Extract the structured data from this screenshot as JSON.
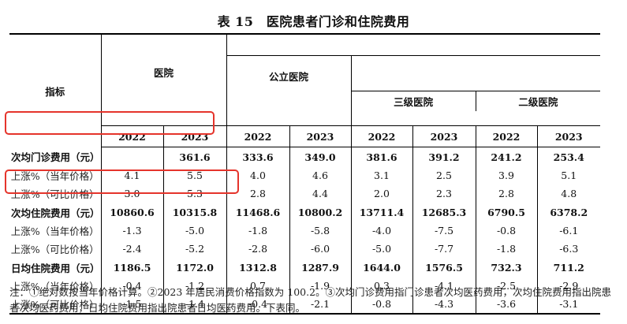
{
  "title": "表 15　医院患者门诊和住院费用",
  "header": {
    "indicator": "指标",
    "hospital": "医院",
    "public_hospital": "公立医院",
    "tier3": "三级医院",
    "tier2": "二级医院",
    "years": [
      "2022",
      "2023",
      "2022",
      "2023",
      "2022",
      "2023",
      "2022",
      "2023"
    ]
  },
  "rows": [
    {
      "label": "次均门诊费用（元）",
      "type": "main",
      "values": [
        "",
        "361.6",
        "333.6",
        "349.0",
        "381.6",
        "391.2",
        "241.2",
        "253.4"
      ]
    },
    {
      "label": "上涨%（当年价格）",
      "type": "sub",
      "values": [
        "4.1",
        "5.5",
        "4.0",
        "4.6",
        "3.1",
        "2.5",
        "3.9",
        "5.1"
      ]
    },
    {
      "label": "上涨%（可比价格）",
      "type": "sub",
      "values": [
        "3.0",
        "5.3",
        "2.8",
        "4.4",
        "2.0",
        "2.3",
        "2.8",
        "4.8"
      ]
    },
    {
      "label": "次均住院费用（元）",
      "type": "main",
      "values": [
        "10860.6",
        "10315.8",
        "11468.6",
        "10800.2",
        "13711.4",
        "12685.3",
        "6790.5",
        "6378.2"
      ]
    },
    {
      "label": "上涨%（当年价格）",
      "type": "sub",
      "values": [
        "-1.3",
        "-5.0",
        "-1.8",
        "-5.8",
        "-4.0",
        "-7.5",
        "-0.8",
        "-6.1"
      ]
    },
    {
      "label": "上涨%（可比价格）",
      "type": "sub",
      "values": [
        "-2.4",
        "-5.2",
        "-2.8",
        "-6.0",
        "-5.0",
        "-7.7",
        "-1.8",
        "-6.3"
      ]
    },
    {
      "label": "日均住院费用（元）",
      "type": "main",
      "values": [
        "1186.5",
        "1172.0",
        "1312.8",
        "1287.9",
        "1644.0",
        "1576.5",
        "732.3",
        "711.2"
      ]
    },
    {
      "label": "上涨%（当年价格）",
      "type": "sub",
      "values": [
        "-0.4",
        "-1.2",
        "0.7",
        "-1.9",
        "0.3",
        "-4.1",
        "-2.5",
        "-2.9"
      ]
    },
    {
      "label": "上涨%（可比价格）",
      "type": "sub",
      "values": [
        "-1.5",
        "-1.4",
        "-0.4",
        "-2.1",
        "-0.8",
        "-4.3",
        "-3.6",
        "-3.1"
      ]
    }
  ],
  "note": "注：①绝对数按当年价格计算。②2023 年居民消费价格指数为 100.2。③次均门诊费用指门诊患者次均医药费用，次均住院费用指出院患者次均医药费用，日均住院费用指出院患者日均医药费用。下表同。",
  "highlight_color": "#e5342b"
}
